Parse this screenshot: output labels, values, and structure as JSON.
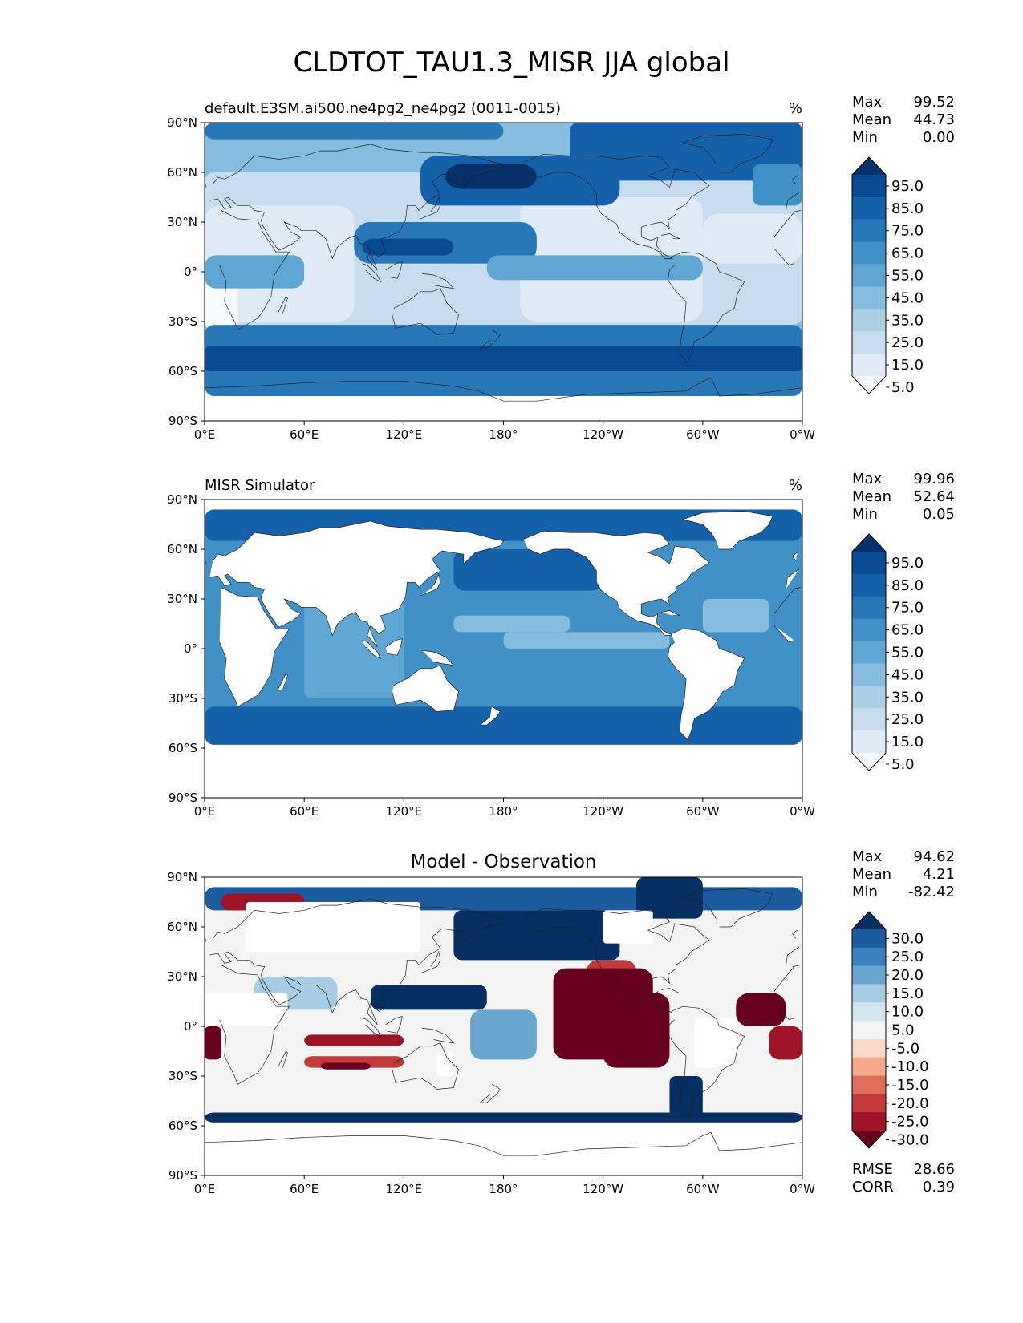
{
  "title": "CLDTOT_TAU1.3_MISR JJA global",
  "axes": {
    "lat_ticks": [
      "90°N",
      "60°N",
      "30°N",
      "0°",
      "30°S",
      "60°S",
      "90°S"
    ],
    "lon_ticks": [
      "0°E",
      "60°E",
      "120°E",
      "180°",
      "120°W",
      "60°W",
      "0°W"
    ]
  },
  "panels": [
    {
      "id": "model",
      "title_left": "default.E3SM.ai500.ne4pg2_ne4pg2 (0011-0015)",
      "title_center": "",
      "units": "%",
      "stats": [
        {
          "label": "Max",
          "value": "99.52"
        },
        {
          "label": "Mean",
          "value": "44.73"
        },
        {
          "label": "Min",
          "value": "0.00"
        }
      ],
      "colorbar": {
        "labels": [
          "95.0",
          "85.0",
          "75.0",
          "65.0",
          "55.0",
          "45.0",
          "35.0",
          "25.0",
          "15.0",
          "5.0"
        ],
        "colors": [
          "#08306b",
          "#0a4a92",
          "#1561a9",
          "#2878b8",
          "#4191c6",
          "#60a6d2",
          "#86bcdd",
          "#abd0e6",
          "#c8dcf0",
          "#dfebf7",
          "#f7fbff"
        ]
      },
      "metrics": []
    },
    {
      "id": "obs",
      "title_left": "MISR Simulator",
      "title_center": "",
      "units": "%",
      "stats": [
        {
          "label": "Max",
          "value": "99.96"
        },
        {
          "label": "Mean",
          "value": "52.64"
        },
        {
          "label": "Min",
          "value": "0.05"
        }
      ],
      "colorbar": {
        "labels": [
          "95.0",
          "85.0",
          "75.0",
          "65.0",
          "55.0",
          "45.0",
          "35.0",
          "25.0",
          "15.0",
          "5.0"
        ],
        "colors": [
          "#08306b",
          "#0a4a92",
          "#1561a9",
          "#2878b8",
          "#4191c6",
          "#60a6d2",
          "#86bcdd",
          "#abd0e6",
          "#c8dcf0",
          "#dfebf7",
          "#f7fbff"
        ]
      },
      "metrics": []
    },
    {
      "id": "diff",
      "title_left": "",
      "title_center": "Model - Observation",
      "units": "",
      "stats": [
        {
          "label": "Max",
          "value": "94.62"
        },
        {
          "label": "Mean",
          "value": "4.21"
        },
        {
          "label": "Min",
          "value": "-82.42"
        }
      ],
      "colorbar": {
        "labels": [
          "30.0",
          "25.0",
          "20.0",
          "15.0",
          "10.0",
          "5.0",
          "-5.0",
          "-10.0",
          "-15.0",
          "-20.0",
          "-25.0",
          "-30.0"
        ],
        "colors": [
          "#053061",
          "#1c5c9e",
          "#3a83bb",
          "#69a6cf",
          "#a6cde3",
          "#d3e6f0",
          "#f4f4f4",
          "#f9d9c8",
          "#f3a98a",
          "#df6f59",
          "#c33a3c",
          "#9d1429",
          "#67001f"
        ]
      },
      "metrics": [
        {
          "label": "RMSE",
          "value": "28.66"
        },
        {
          "label": "CORR",
          "value": "0.39"
        }
      ]
    }
  ]
}
